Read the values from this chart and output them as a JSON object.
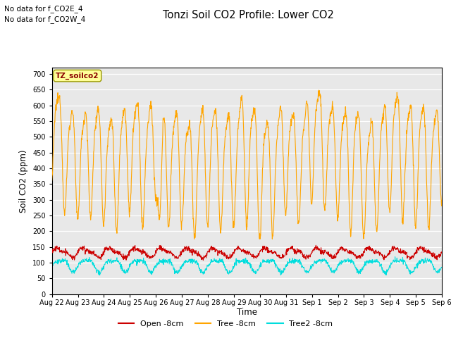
{
  "title": "Tonzi Soil CO2 Profile: Lower CO2",
  "ylabel": "Soil CO2 (ppm)",
  "xlabel": "Time",
  "top_text_1": "No data for f_CO2E_4",
  "top_text_2": "No data for f_CO2W_4",
  "box_label": "TZ_soilco2",
  "legend_entries": [
    "Open -8cm",
    "Tree -8cm",
    "Tree2 -8cm"
  ],
  "tree_color": "#ffa500",
  "open_color": "#cc0000",
  "tree2_color": "#00dddd",
  "bg_color": "#e8e8e8",
  "ylim": [
    0,
    720
  ],
  "yticks": [
    0,
    50,
    100,
    150,
    200,
    250,
    300,
    350,
    400,
    450,
    500,
    550,
    600,
    650,
    700
  ],
  "x_tick_labels": [
    "Aug 22",
    "Aug 23",
    "Aug 24",
    "Aug 25",
    "Aug 26",
    "Aug 27",
    "Aug 28",
    "Aug 29",
    "Aug 30",
    "Aug 31",
    "Sep 1",
    "Sep 2",
    "Sep 3",
    "Sep 4",
    "Sep 5",
    "Sep 6"
  ],
  "num_days": 15,
  "pts_per_day": 96,
  "tree_base": 490,
  "tree_amp": 130,
  "open_base": 132,
  "open_amp": 13,
  "tree2_base": 93,
  "tree2_amp": 18
}
